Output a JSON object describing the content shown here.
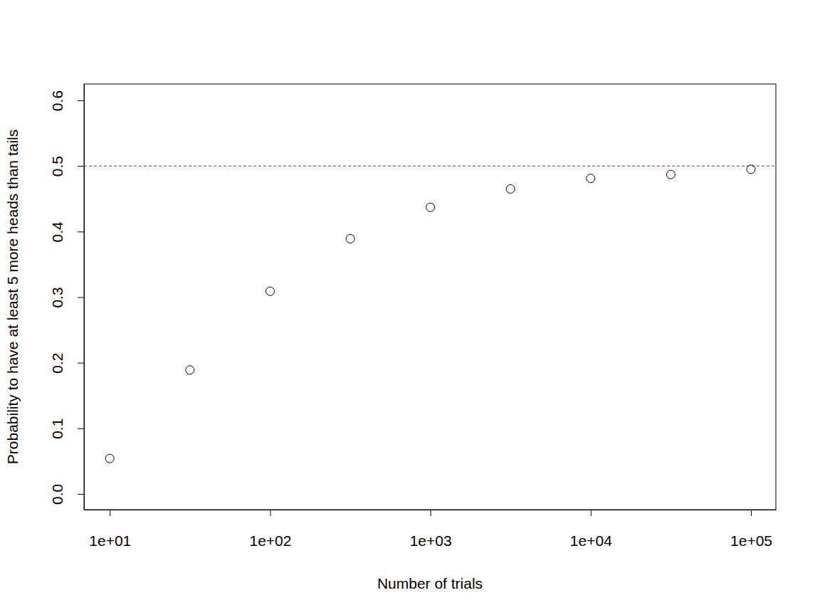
{
  "chart_data": {
    "type": "scatter",
    "x_label": "Number of trials",
    "y_label": "Probability to have at least 5 more heads than tails",
    "x": [
      10,
      31.62,
      100,
      316.2,
      1000,
      3162,
      10000,
      31623,
      100000
    ],
    "series": [
      {
        "values": [
          0.054,
          0.189,
          0.309,
          0.389,
          0.437,
          0.465,
          0.481,
          0.487,
          0.495
        ],
        "color": "#000000",
        "marker": "open_circle"
      }
    ],
    "reference_lines": [
      {
        "value": 0.5,
        "color": "#ff0000",
        "line_style": "dashed"
      }
    ],
    "log": "x",
    "xlim": [
      6.9,
      143000
    ],
    "ylim": [
      -0.024,
      0.625
    ],
    "xticks": [
      {
        "value": 10,
        "label": "1e+01"
      },
      {
        "value": 100,
        "label": "1e+02"
      },
      {
        "value": 1000,
        "label": "1e+03"
      },
      {
        "value": 10000,
        "label": "1e+04"
      },
      {
        "value": 100000,
        "label": "1e+05"
      }
    ],
    "yticks": [
      {
        "value": 0,
        "label": "0.0"
      },
      0.1,
      0.2,
      0.3,
      0.4,
      0.5,
      0.6
    ],
    "grid": false
  }
}
